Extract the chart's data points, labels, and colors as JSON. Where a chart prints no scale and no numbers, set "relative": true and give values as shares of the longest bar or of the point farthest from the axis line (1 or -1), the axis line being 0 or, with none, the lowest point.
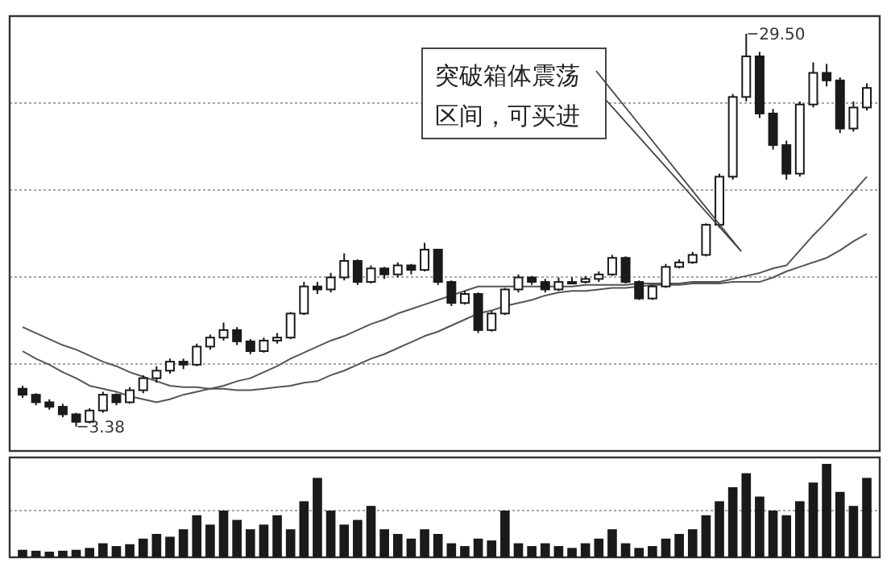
{
  "chart_data": [
    {
      "type": "candlestick",
      "grid": true,
      "categories": [
        null,
        null,
        null,
        null,
        null,
        null,
        null,
        null,
        null,
        null,
        null,
        null,
        null,
        null,
        null,
        null,
        null,
        null,
        null,
        null,
        null,
        null,
        null,
        null,
        null,
        null,
        null,
        null,
        null,
        null,
        null,
        null,
        null,
        null,
        null,
        null,
        null,
        null,
        null,
        null,
        null,
        null,
        null,
        null,
        null,
        null,
        null,
        null,
        null,
        null,
        null,
        null,
        null,
        null,
        null,
        null,
        null,
        null,
        null,
        null,
        null,
        null,
        null,
        null
      ],
      "ohlc": [
        [
          5.9,
          6.1,
          5.3,
          5.5
        ],
        [
          5.5,
          5.6,
          4.8,
          5.0
        ],
        [
          5.0,
          5.2,
          4.5,
          4.7
        ],
        [
          4.7,
          4.9,
          4.0,
          4.2
        ],
        [
          4.2,
          4.3,
          3.38,
          3.7
        ],
        [
          3.7,
          4.6,
          3.6,
          4.45
        ],
        [
          4.45,
          5.7,
          4.3,
          5.5
        ],
        [
          5.5,
          5.6,
          4.8,
          5.0
        ],
        [
          5.0,
          6.0,
          4.9,
          5.8
        ],
        [
          5.8,
          6.8,
          5.6,
          6.6
        ],
        [
          6.6,
          7.4,
          6.3,
          7.1
        ],
        [
          7.1,
          7.9,
          6.9,
          7.7
        ],
        [
          7.7,
          7.9,
          7.2,
          7.5
        ],
        [
          7.5,
          8.9,
          7.4,
          8.7
        ],
        [
          8.7,
          9.5,
          8.5,
          9.3
        ],
        [
          9.3,
          10.3,
          9.1,
          9.8
        ],
        [
          9.8,
          10.0,
          8.8,
          9.05
        ],
        [
          9.05,
          9.2,
          8.2,
          8.4
        ],
        [
          8.4,
          9.3,
          8.3,
          9.1
        ],
        [
          9.1,
          9.6,
          8.9,
          9.3
        ],
        [
          9.3,
          11.0,
          9.2,
          10.9
        ],
        [
          10.9,
          13.0,
          10.8,
          12.7
        ],
        [
          12.7,
          13.0,
          12.2,
          12.5
        ],
        [
          12.5,
          13.6,
          12.3,
          13.3
        ],
        [
          13.3,
          14.9,
          13.1,
          14.4
        ],
        [
          14.4,
          14.5,
          12.8,
          13.0
        ],
        [
          13.0,
          14.1,
          12.9,
          13.9
        ],
        [
          13.9,
          14.0,
          13.2,
          13.5
        ],
        [
          13.5,
          14.3,
          13.3,
          14.1
        ],
        [
          14.1,
          14.2,
          13.5,
          13.8
        ],
        [
          13.8,
          15.6,
          13.7,
          15.15
        ],
        [
          15.15,
          15.2,
          12.8,
          13.0
        ],
        [
          13.0,
          13.1,
          11.4,
          11.6
        ],
        [
          11.6,
          12.4,
          11.5,
          12.2
        ],
        [
          12.2,
          12.3,
          9.6,
          9.8
        ],
        [
          9.8,
          11.1,
          9.7,
          10.9
        ],
        [
          10.9,
          12.6,
          10.8,
          12.5
        ],
        [
          12.5,
          13.5,
          12.3,
          13.3
        ],
        [
          13.3,
          13.4,
          12.8,
          13.0
        ],
        [
          13.0,
          13.2,
          12.3,
          12.5
        ],
        [
          12.5,
          13.3,
          12.4,
          13.0
        ],
        [
          13.0,
          13.3,
          12.9,
          13.0
        ],
        [
          13.0,
          13.4,
          12.9,
          13.2
        ],
        [
          13.2,
          13.7,
          13.0,
          13.5
        ],
        [
          13.5,
          14.8,
          13.4,
          14.6
        ],
        [
          14.6,
          14.7,
          12.9,
          13.0
        ],
        [
          13.0,
          13.1,
          11.8,
          11.9
        ],
        [
          11.9,
          12.8,
          11.8,
          12.7
        ],
        [
          12.7,
          14.2,
          12.6,
          14.0
        ],
        [
          14.0,
          14.5,
          13.9,
          14.3
        ],
        [
          14.3,
          15.0,
          14.2,
          14.8
        ],
        [
          14.8,
          16.9,
          14.7,
          16.8
        ],
        [
          16.8,
          20.2,
          16.6,
          20.0
        ],
        [
          20.0,
          25.5,
          19.8,
          25.3
        ],
        [
          25.3,
          29.5,
          25.0,
          28.0
        ],
        [
          28.0,
          28.3,
          23.9,
          24.2
        ],
        [
          24.2,
          24.5,
          21.8,
          22.1
        ],
        [
          22.1,
          22.4,
          19.8,
          20.2
        ],
        [
          20.2,
          25.0,
          20.0,
          24.8
        ],
        [
          24.8,
          27.6,
          24.6,
          26.9
        ],
        [
          26.9,
          27.5,
          26.0,
          26.4
        ],
        [
          26.4,
          26.6,
          22.9,
          23.2
        ],
        [
          23.2,
          25.0,
          23.0,
          24.6
        ],
        [
          24.6,
          26.2,
          24.4,
          25.9
        ]
      ],
      "color": "#1a1a1a",
      "series": [
        {
          "type": "line",
          "color": "#555555",
          "values": [
            10.0,
            9.6,
            9.2,
            8.8,
            8.5,
            8.1,
            7.7,
            7.4,
            7.0,
            6.7,
            6.4,
            6.1,
            6.0,
            6.0,
            5.9,
            5.9,
            5.8,
            5.8,
            5.9,
            6.0,
            6.1,
            6.3,
            6.4,
            6.8,
            7.1,
            7.5,
            7.9,
            8.2,
            8.6,
            9.0,
            9.4,
            9.7,
            10.1,
            10.5,
            10.9,
            11.1,
            11.4,
            11.6,
            11.8,
            12.1,
            12.3,
            12.4,
            12.4,
            12.5,
            12.6,
            12.6,
            12.7,
            12.8,
            12.8,
            12.8,
            12.9,
            12.9,
            12.9,
            13.0,
            13.0,
            13.0,
            13.3,
            13.7,
            14.0,
            14.3,
            14.6,
            15.1,
            15.7,
            16.2
          ]
        },
        {
          "type": "line",
          "color": "#555555",
          "values": [
            8.4,
            7.9,
            7.5,
            7.0,
            6.6,
            6.1,
            5.9,
            5.7,
            5.4,
            5.2,
            5.0,
            5.2,
            5.5,
            5.7,
            5.9,
            6.1,
            6.4,
            6.6,
            7.0,
            7.4,
            7.9,
            8.3,
            8.7,
            9.1,
            9.4,
            9.8,
            10.2,
            10.5,
            10.9,
            11.2,
            11.5,
            11.8,
            12.1,
            12.4,
            12.7,
            12.7,
            12.7,
            12.7,
            12.7,
            12.7,
            12.7,
            12.7,
            12.8,
            12.8,
            12.8,
            12.8,
            12.9,
            12.9,
            12.9,
            12.9,
            13.0,
            13.0,
            13.0,
            13.2,
            13.4,
            13.6,
            13.9,
            14.1,
            15.1,
            16.1,
            17.0,
            18.0,
            19.0,
            20.0
          ]
        }
      ],
      "annotations": [
        "突破箱体震荡区间，可买进",
        "29.50",
        "3.38"
      ]
    },
    {
      "type": "bar",
      "relative": true,
      "color": "#1a1a1a",
      "ref_lines": [
        {
          "axis": "y",
          "value": 0.5,
          "color": "#888888",
          "line_style": "dotted"
        }
      ],
      "categories": [
        null,
        null,
        null,
        null,
        null,
        null,
        null,
        null,
        null,
        null,
        null,
        null,
        null,
        null,
        null,
        null,
        null,
        null,
        null,
        null,
        null,
        null,
        null,
        null,
        null,
        null,
        null,
        null,
        null,
        null,
        null,
        null,
        null,
        null,
        null,
        null,
        null,
        null,
        null,
        null,
        null,
        null,
        null,
        null,
        null,
        null,
        null,
        null,
        null,
        null,
        null,
        null,
        null,
        null,
        null,
        null,
        null,
        null,
        null,
        null,
        null,
        null,
        null,
        null
      ],
      "values": [
        0.08,
        0.07,
        0.06,
        0.07,
        0.08,
        0.1,
        0.15,
        0.12,
        0.14,
        0.2,
        0.25,
        0.22,
        0.3,
        0.45,
        0.35,
        0.5,
        0.4,
        0.3,
        0.35,
        0.45,
        0.3,
        0.6,
        0.85,
        0.5,
        0.35,
        0.4,
        0.55,
        0.3,
        0.25,
        0.2,
        0.3,
        0.25,
        0.15,
        0.12,
        0.2,
        0.18,
        0.5,
        0.15,
        0.12,
        0.15,
        0.12,
        0.1,
        0.15,
        0.2,
        0.3,
        0.15,
        0.1,
        0.12,
        0.2,
        0.25,
        0.3,
        0.45,
        0.6,
        0.75,
        0.9,
        0.65,
        0.5,
        0.45,
        0.6,
        0.8,
        1.0,
        0.7,
        0.55,
        0.85
      ]
    }
  ]
}
